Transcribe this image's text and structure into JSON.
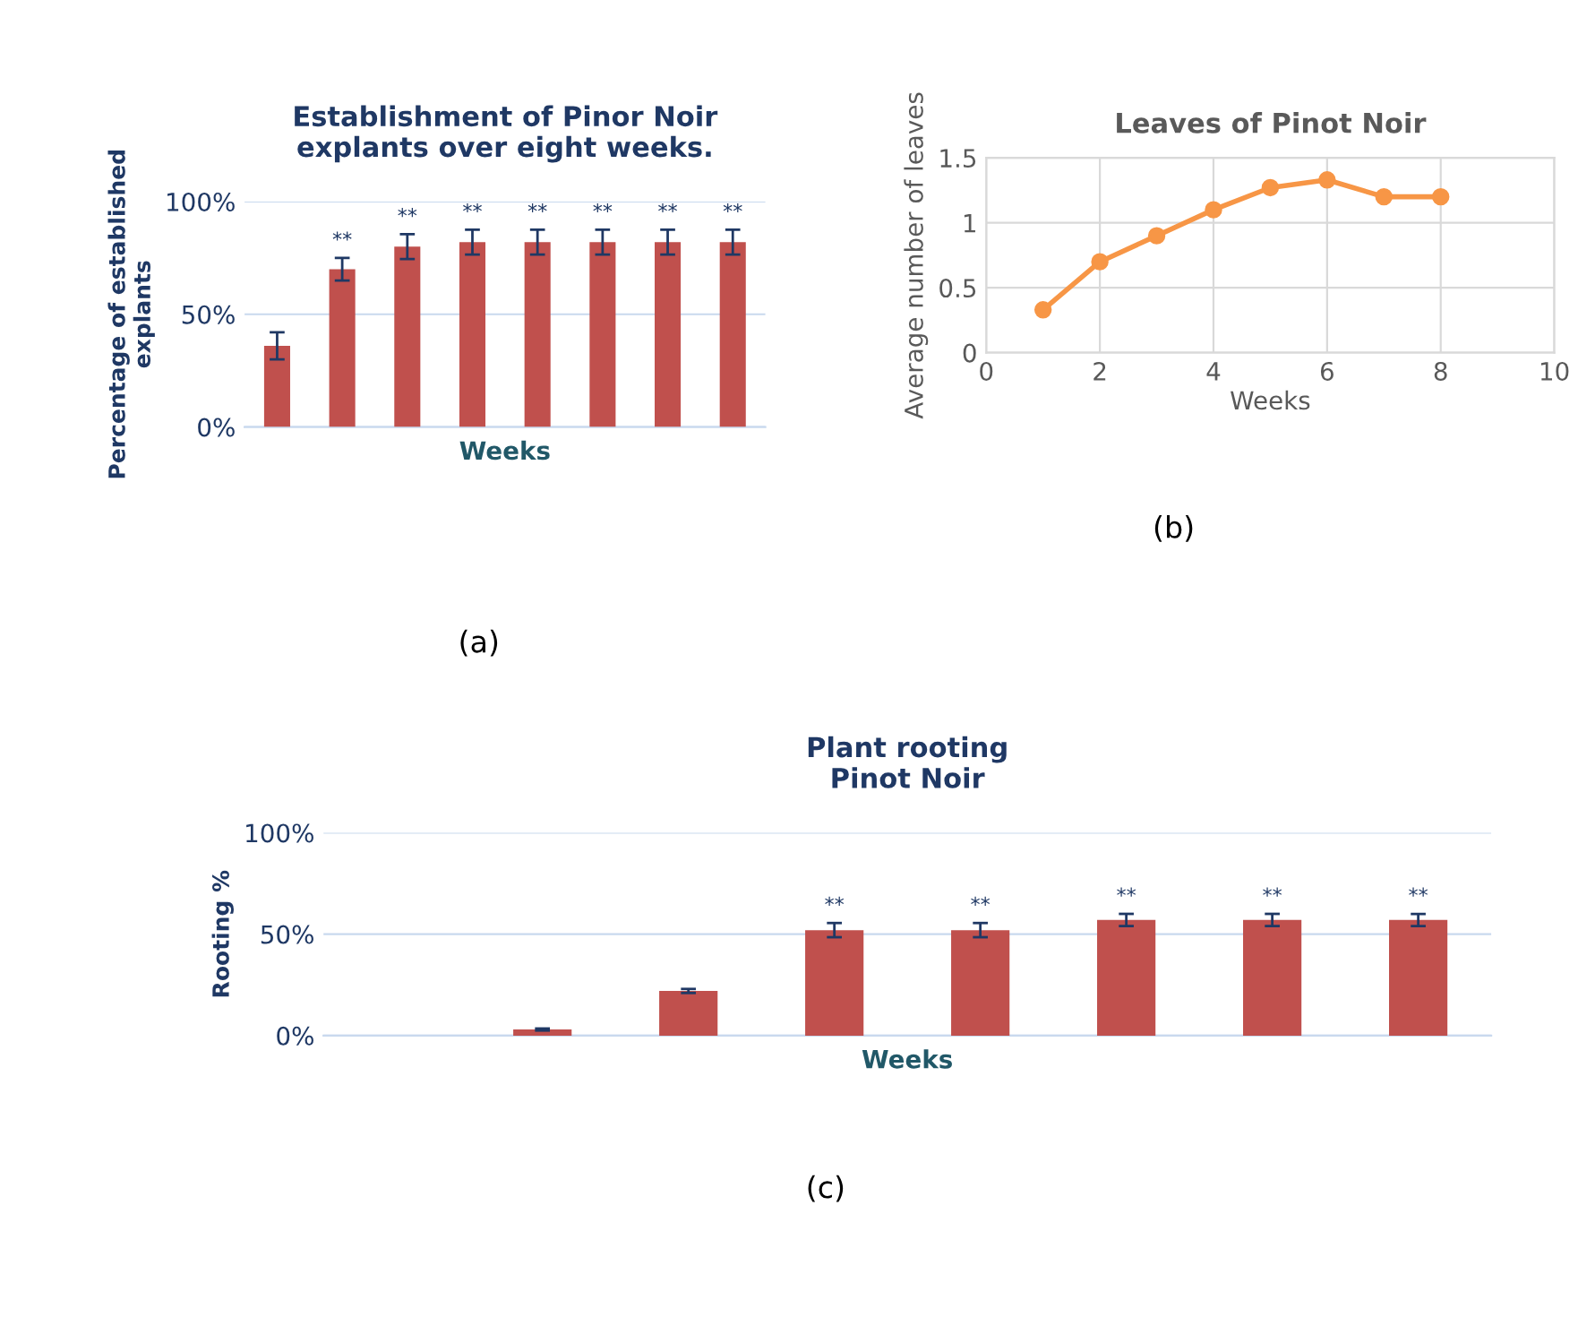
{
  "chart_data": [
    {
      "type": "bar",
      "title": "Establishment of Pinor Noir\nexplants over eight weeks.",
      "xlabel": "Weeks",
      "ylabel": "Percentage of established\nexplants",
      "categories": [
        null,
        null,
        null,
        null,
        null,
        null,
        null,
        null
      ],
      "series": [
        {
          "color": "#c0504d",
          "values": [
            36,
            70,
            80,
            82,
            82,
            82,
            82,
            82
          ],
          "errors": [
            6,
            5,
            5.5,
            5.5,
            5.5,
            5.5,
            5.5,
            5.5
          ],
          "value_labels": [
            null,
            "**",
            "**",
            "**",
            "**",
            "**",
            "**",
            "**"
          ]
        }
      ],
      "ylim": [
        0,
        100
      ],
      "yticks": [
        {
          "value": 0,
          "label": "0%"
        },
        {
          "value": 50,
          "label": "50%"
        },
        {
          "value": 100,
          "label": "100%"
        }
      ],
      "grid": "y",
      "annotations": [
        "(a)"
      ]
    },
    {
      "type": "line",
      "title": "Leaves of Pinot Noir",
      "xlabel": "Weeks",
      "ylabel": "Average number of leaves",
      "x": [
        1,
        2,
        3,
        4,
        5,
        6,
        7,
        8
      ],
      "series": [
        {
          "color": "#f79646",
          "values": [
            0.33,
            0.7,
            0.9,
            1.1,
            1.27,
            1.33,
            1.2,
            1.2
          ]
        }
      ],
      "xlim": [
        0,
        10
      ],
      "xticks": [
        0,
        2,
        4,
        6,
        8,
        10
      ],
      "ylim": [
        0,
        1.5
      ],
      "yticks": [
        0,
        0.5,
        1,
        1.5
      ],
      "grid": true,
      "marker": "circle",
      "line_style": "solid",
      "annotations": [
        "(b)"
      ]
    },
    {
      "type": "bar",
      "title": "Plant rooting\nPinot Noir",
      "xlabel": "Weeks",
      "ylabel": "Rooting %",
      "categories": [
        null,
        null,
        null,
        null,
        null,
        null,
        null,
        null
      ],
      "series": [
        {
          "color": "#c0504d",
          "values": [
            0,
            3,
            22,
            52,
            52,
            57,
            57,
            57
          ],
          "errors": [
            null,
            0.5,
            1,
            3.5,
            3.5,
            3,
            3,
            3
          ],
          "value_labels": [
            null,
            null,
            null,
            "**",
            "**",
            "**",
            "**",
            "**"
          ]
        }
      ],
      "ylim": [
        0,
        100
      ],
      "yticks": [
        {
          "value": 0,
          "label": "0%"
        },
        {
          "value": 50,
          "label": "50%"
        },
        {
          "value": 100,
          "label": "100%"
        }
      ],
      "grid": "y",
      "annotations": [
        "(c)"
      ]
    }
  ]
}
